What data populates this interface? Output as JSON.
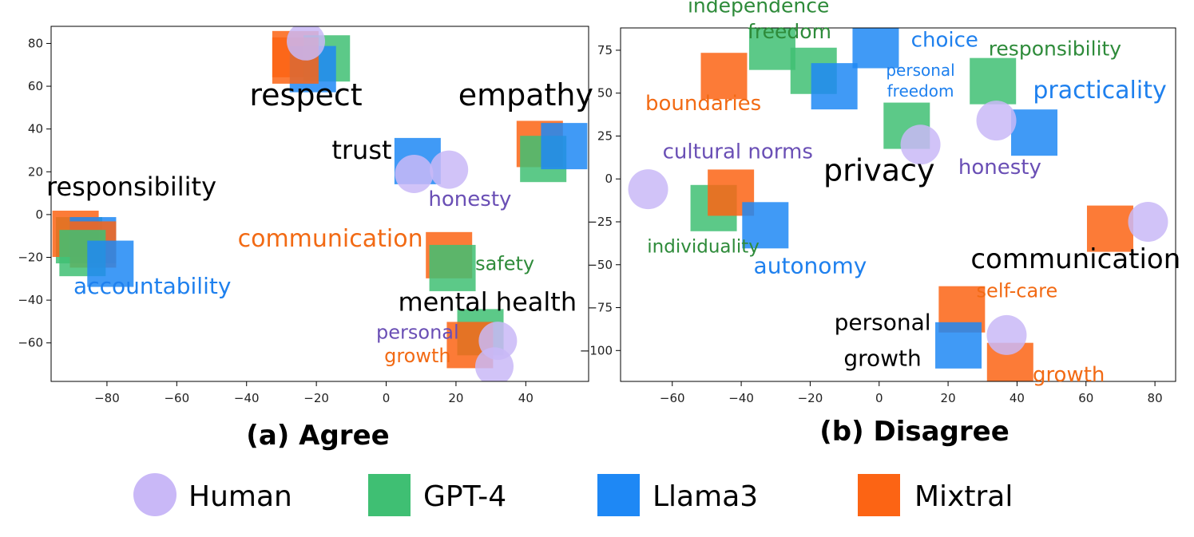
{
  "figure_title": "",
  "colors": {
    "Human": "#c9b8f7",
    "GPT-4": "#3fbf73",
    "Llama3": "#1e88f5",
    "Mixtral": "#fc6414",
    "black": "#000000",
    "purple_text": "#6a4fb5",
    "green_text": "#2e8b3a",
    "blue_text": "#1e80ee",
    "orange_text": "#f26a14"
  },
  "legend": [
    {
      "name": "Human",
      "shape": "circle"
    },
    {
      "name": "GPT-4",
      "shape": "square"
    },
    {
      "name": "Llama3",
      "shape": "square"
    },
    {
      "name": "Mixtral",
      "shape": "square"
    }
  ],
  "chart_data": [
    {
      "type": "scatter",
      "caption": "(a) Agree",
      "title": "",
      "xlabel": "",
      "ylabel": "",
      "xlim": [
        -96,
        58
      ],
      "ylim": [
        -78,
        88
      ],
      "xticks": [
        -80,
        -60,
        -40,
        -20,
        0,
        20,
        40
      ],
      "yticks": [
        -60,
        -40,
        -20,
        0,
        20,
        40,
        60,
        80
      ],
      "grid": false,
      "points": [
        {
          "series": "Mixtral",
          "x": -26,
          "y": 75
        },
        {
          "series": "GPT-4",
          "x": -17,
          "y": 73
        },
        {
          "series": "Llama3",
          "x": -21,
          "y": 68
        },
        {
          "series": "Mixtral",
          "x": -26,
          "y": 72
        },
        {
          "series": "Human",
          "x": -23,
          "y": 81
        },
        {
          "series": "Mixtral",
          "x": 44,
          "y": 33
        },
        {
          "series": "GPT-4",
          "x": 45,
          "y": 26
        },
        {
          "series": "Llama3",
          "x": 51,
          "y": 32
        },
        {
          "series": "Llama3",
          "x": 9,
          "y": 25
        },
        {
          "series": "Human",
          "x": 8,
          "y": 19
        },
        {
          "series": "Human",
          "x": 18,
          "y": 21
        },
        {
          "series": "GPT-4",
          "x": -88,
          "y": -12
        },
        {
          "series": "Mixtral",
          "x": -89,
          "y": -9
        },
        {
          "series": "Llama3",
          "x": -84,
          "y": -12
        },
        {
          "series": "Mixtral",
          "x": -84,
          "y": -14
        },
        {
          "series": "GPT-4",
          "x": -87,
          "y": -18
        },
        {
          "series": "Llama3",
          "x": -79,
          "y": -23
        },
        {
          "series": "Mixtral",
          "x": 18,
          "y": -19
        },
        {
          "series": "GPT-4",
          "x": 19,
          "y": -25
        },
        {
          "series": "GPT-4",
          "x": 27,
          "y": -55
        },
        {
          "series": "Mixtral",
          "x": 24,
          "y": -61
        },
        {
          "series": "Human",
          "x": 32,
          "y": -59
        },
        {
          "series": "Human",
          "x": 31,
          "y": -71
        }
      ],
      "labels": [
        {
          "text": "respect",
          "x": -23,
          "y": 51,
          "size": 38,
          "color": "black"
        },
        {
          "text": "empathy",
          "x": 40,
          "y": 51,
          "size": 38,
          "color": "black"
        },
        {
          "text": "trust",
          "x": -7,
          "y": 26,
          "size": 32,
          "color": "black"
        },
        {
          "text": "honesty",
          "x": 24,
          "y": 4,
          "size": 26,
          "color": "purple_text"
        },
        {
          "text": "responsibility",
          "x": -73,
          "y": 9,
          "size": 32,
          "color": "black"
        },
        {
          "text": "communication",
          "x": -16,
          "y": -15,
          "size": 30,
          "color": "orange_text"
        },
        {
          "text": "safety",
          "x": 34,
          "y": -26,
          "size": 24,
          "color": "green_text"
        },
        {
          "text": "accountability",
          "x": -67,
          "y": -37,
          "size": 28,
          "color": "blue_text"
        },
        {
          "text": "mental health",
          "x": 29,
          "y": -45,
          "size": 32,
          "color": "black"
        },
        {
          "text": "personal",
          "x": 9,
          "y": -58,
          "size": 24,
          "color": "purple_text"
        },
        {
          "text": "growth",
          "x": 9,
          "y": -69,
          "size": 24,
          "color": "orange_text"
        }
      ]
    },
    {
      "type": "scatter",
      "caption": "(b) Disagree",
      "title": "",
      "xlabel": "",
      "ylabel": "",
      "xlim": [
        -75,
        86
      ],
      "ylim": [
        -118,
        88
      ],
      "xticks": [
        -60,
        -40,
        -20,
        0,
        20,
        40,
        60,
        80
      ],
      "yticks": [
        -100,
        -75,
        -50,
        -25,
        0,
        25,
        50,
        75
      ],
      "grid": false,
      "points": [
        {
          "series": "GPT-4",
          "x": -31,
          "y": 77
        },
        {
          "series": "GPT-4",
          "x": -19,
          "y": 63
        },
        {
          "series": "Llama3",
          "x": -1,
          "y": 78
        },
        {
          "series": "Llama3",
          "x": -13,
          "y": 54
        },
        {
          "series": "Mixtral",
          "x": -45,
          "y": 60
        },
        {
          "series": "GPT-4",
          "x": 33,
          "y": 57
        },
        {
          "series": "Human",
          "x": 34,
          "y": 34
        },
        {
          "series": "Llama3",
          "x": 45,
          "y": 27
        },
        {
          "series": "GPT-4",
          "x": 8,
          "y": 31
        },
        {
          "series": "Human",
          "x": 12,
          "y": 20
        },
        {
          "series": "Human",
          "x": -67,
          "y": -6
        },
        {
          "series": "GPT-4",
          "x": -48,
          "y": -17
        },
        {
          "series": "Mixtral",
          "x": -43,
          "y": -8
        },
        {
          "series": "Llama3",
          "x": -33,
          "y": -27
        },
        {
          "series": "Mixtral",
          "x": 67,
          "y": -29
        },
        {
          "series": "Human",
          "x": 78,
          "y": -25
        },
        {
          "series": "Mixtral",
          "x": 24,
          "y": -76
        },
        {
          "series": "Llama3",
          "x": 23,
          "y": -97
        },
        {
          "series": "Human",
          "x": 37,
          "y": -91
        },
        {
          "series": "Mixtral",
          "x": 38,
          "y": -109
        }
      ],
      "labels": [
        {
          "text": "independence",
          "x": -35,
          "y": 97,
          "size": 25,
          "color": "green_text"
        },
        {
          "text": "freedom",
          "x": -26,
          "y": 82,
          "size": 25,
          "color": "green_text"
        },
        {
          "text": "choice",
          "x": 19,
          "y": 77,
          "size": 26,
          "color": "blue_text"
        },
        {
          "text": "responsibility",
          "x": 51,
          "y": 72,
          "size": 25,
          "color": "green_text"
        },
        {
          "text": "personal",
          "x": 12,
          "y": 60,
          "size": 20,
          "color": "blue_text"
        },
        {
          "text": "freedom",
          "x": 12,
          "y": 48,
          "size": 20,
          "color": "blue_text"
        },
        {
          "text": "practicality",
          "x": 64,
          "y": 47,
          "size": 30,
          "color": "blue_text"
        },
        {
          "text": "boundaries",
          "x": -51,
          "y": 40,
          "size": 26,
          "color": "orange_text"
        },
        {
          "text": "cultural norms",
          "x": -41,
          "y": 12,
          "size": 26,
          "color": "purple_text"
        },
        {
          "text": "privacy",
          "x": 0,
          "y": -1,
          "size": 38,
          "color": "black"
        },
        {
          "text": "honesty",
          "x": 35,
          "y": 3,
          "size": 26,
          "color": "purple_text"
        },
        {
          "text": "individuality",
          "x": -51,
          "y": -43,
          "size": 23,
          "color": "green_text"
        },
        {
          "text": "autonomy",
          "x": -20,
          "y": -55,
          "size": 28,
          "color": "blue_text"
        },
        {
          "text": "communication",
          "x": 57,
          "y": -52,
          "size": 34,
          "color": "black"
        },
        {
          "text": "self-care",
          "x": 40,
          "y": -69,
          "size": 24,
          "color": "orange_text"
        },
        {
          "text": "personal",
          "x": 1,
          "y": -88,
          "size": 28,
          "color": "black"
        },
        {
          "text": "growth",
          "x": 1,
          "y": -109,
          "size": 28,
          "color": "black"
        },
        {
          "text": "growth",
          "x": 55,
          "y": -118,
          "size": 26,
          "color": "orange_text"
        }
      ]
    }
  ]
}
